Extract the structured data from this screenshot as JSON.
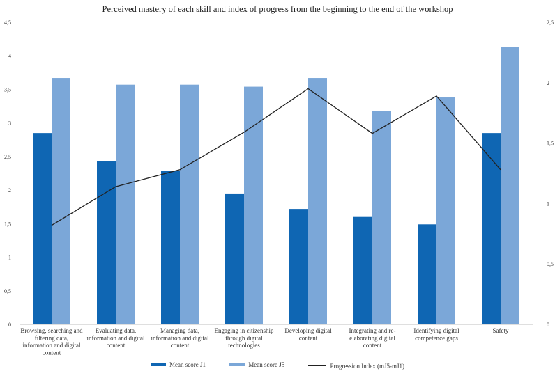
{
  "chart_data": {
    "type": "bar",
    "title": "Perceived mastery of each skill and index of progress from the beginning to the end of the workshop",
    "categories": [
      [
        "Browsing, searching and",
        "filtering data,",
        "information and digital",
        "content"
      ],
      [
        "Evaluating data,",
        "information and digital",
        "content"
      ],
      [
        "Managing data,",
        "information and digital",
        "content"
      ],
      [
        "Engaging in citizenship",
        "through digital",
        "technologies"
      ],
      [
        "Developing digital",
        "content"
      ],
      [
        "Integrating and re-",
        "elaborating digital",
        "content"
      ],
      [
        "Identifying digital",
        "competence gaps"
      ],
      [
        "Safety"
      ]
    ],
    "series": [
      {
        "name": "Mean score J1",
        "values": [
          2.85,
          2.43,
          2.29,
          1.95,
          1.72,
          1.6,
          1.49,
          2.85
        ],
        "color": "#0f66b3",
        "axis": "left"
      },
      {
        "name": "Mean score J5",
        "values": [
          3.67,
          3.57,
          3.57,
          3.54,
          3.67,
          3.18,
          3.38,
          4.13
        ],
        "color": "#7ba7d8",
        "axis": "left"
      },
      {
        "name": "Progression Index (mJ5-mJ1)",
        "values": [
          0.82,
          1.14,
          1.28,
          1.59,
          1.95,
          1.58,
          1.89,
          1.28
        ],
        "color": "#222222",
        "axis": "right",
        "type": "line"
      }
    ],
    "y_left": {
      "min": 0,
      "max": 4.5,
      "step": 0.5,
      "ticks": [
        "0",
        "0,5",
        "1",
        "1,5",
        "2",
        "2,5",
        "3",
        "3,5",
        "4",
        "4,5"
      ]
    },
    "y_right": {
      "min": 0,
      "max": 2.5,
      "step": 0.5,
      "ticks": [
        "0",
        "0,5",
        "1",
        "1,5",
        "2",
        "2,5"
      ]
    },
    "grid": false,
    "legend_position": "bottom"
  }
}
